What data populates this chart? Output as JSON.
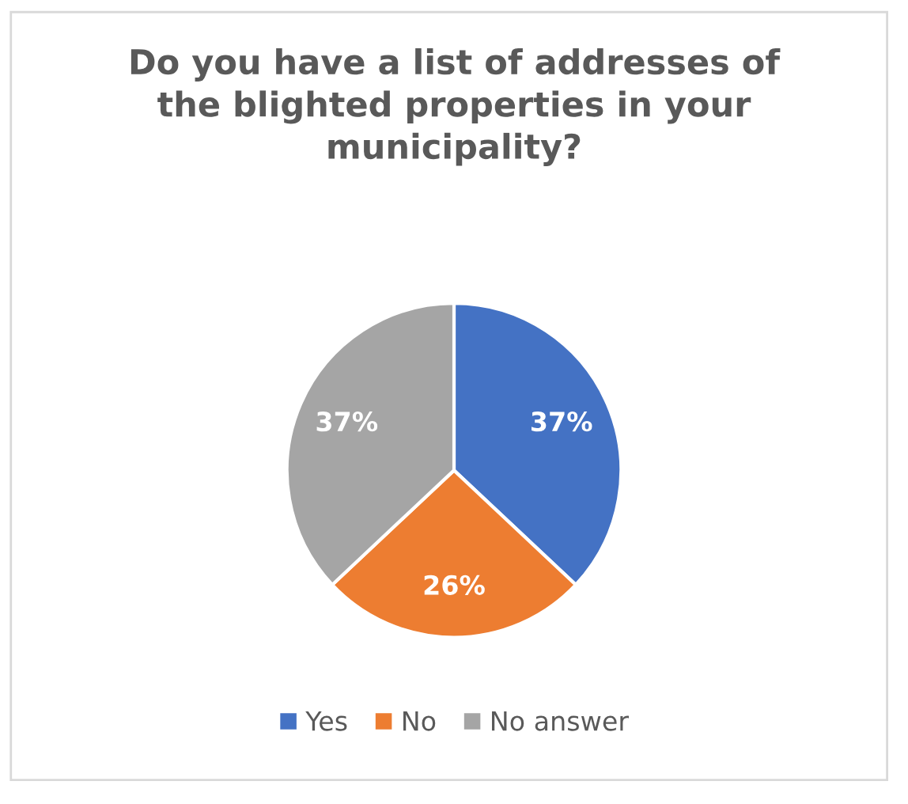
{
  "chart_data": {
    "type": "pie",
    "title": "Do you have a list of addresses of\nthe blighted properties in your\nmunicipality?",
    "categories": [
      "Yes",
      "No",
      "No answer"
    ],
    "values": [
      37,
      26,
      37
    ],
    "colors": [
      "#4472c4",
      "#ed7d31",
      "#a5a5a5"
    ],
    "value_labels": [
      "37%",
      "26%",
      "37%"
    ],
    "legend": "bottom"
  }
}
